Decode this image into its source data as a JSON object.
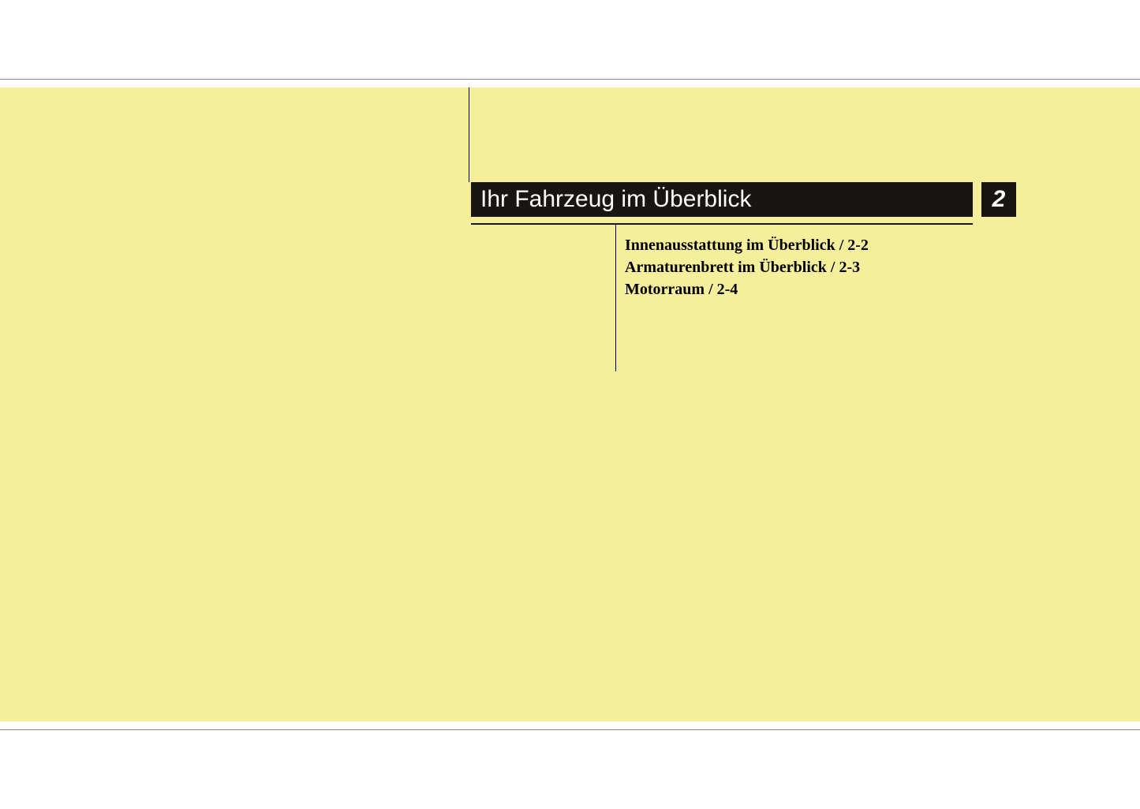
{
  "colors": {
    "page_bg": "#ffffff",
    "yellow_bg": "#f5ee9a",
    "title_bg": "#181512",
    "title_text": "#ffffff",
    "body_text": "#000000",
    "border": "#888888"
  },
  "chapter": {
    "title": "Ihr Fahrzeug im Überblick",
    "number": "2",
    "title_fontsize": 30,
    "toc_fontsize": 20
  },
  "toc": {
    "items": [
      {
        "label": "Innenausstattung im Überblick / 2-2"
      },
      {
        "label": "Armaturenbrett im Überblick / 2-3"
      },
      {
        "label": "Motorraum / 2-4"
      }
    ]
  }
}
